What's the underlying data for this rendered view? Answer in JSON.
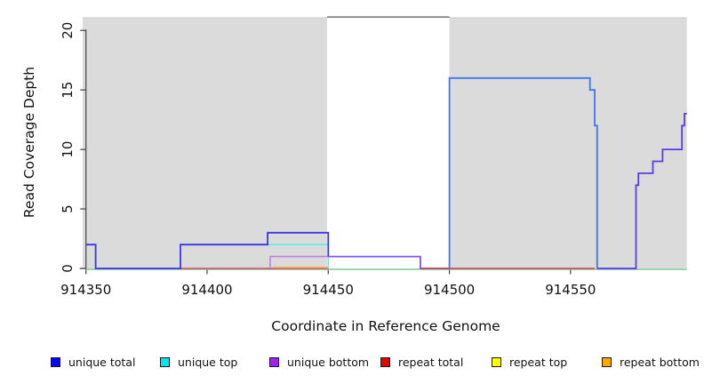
{
  "chart_data": {
    "type": "line",
    "subtype": "step",
    "title": "",
    "xlabel": "Coordinate in Reference Genome",
    "ylabel": "Read Coverage Depth",
    "xlim": [
      914350,
      914598
    ],
    "ylim": [
      0,
      21.1
    ],
    "xticks": [
      914350,
      914400,
      914450,
      914500,
      914550
    ],
    "yticks": [
      0,
      5,
      10,
      15,
      20
    ],
    "grid": false,
    "background_color": "#ffffff",
    "shaded_regions": {
      "color": "#dbdbdb",
      "top_edge_color": "#c9c9c9",
      "ranges": [
        [
          914348.6,
          914449.5
        ],
        [
          914500,
          914598
        ]
      ]
    },
    "gap_top_border": {
      "range": [
        914449.5,
        914500
      ],
      "y": 21.1,
      "color": "#787878"
    },
    "axis_color": "#444444",
    "series": [
      {
        "name": "baseline-zero-line",
        "color": "#7cc98f",
        "width": 1.4,
        "dy": 1.0,
        "points": [
          [
            914350,
            0
          ],
          [
            914598,
            0
          ]
        ]
      },
      {
        "name": "repeat-total-left",
        "color": "#d84a6a",
        "width": 1.4,
        "dy": 0,
        "points": [
          [
            914389,
            0
          ],
          [
            914450,
            0
          ]
        ]
      },
      {
        "name": "repeat-bottom",
        "color": "#ffa040",
        "width": 1.6,
        "dy": -1.0,
        "points": [
          [
            914427,
            0
          ],
          [
            914450,
            0
          ]
        ]
      },
      {
        "name": "unique-top",
        "color": "#5fe8ec",
        "width": 1.6,
        "dy": 0,
        "points": [
          [
            914425,
            2
          ],
          [
            914450,
            2
          ],
          [
            914450,
            0
          ]
        ]
      },
      {
        "name": "unique-bottom",
        "color": "#c080e8",
        "width": 1.6,
        "dy": 0,
        "points": [
          [
            914426,
            0
          ],
          [
            914426,
            1
          ],
          [
            914450,
            1
          ]
        ]
      },
      {
        "name": "unique-total-left",
        "color": "#3a36e4",
        "width": 1.8,
        "dy": 0,
        "points": [
          [
            914350,
            2
          ],
          [
            914354,
            2
          ],
          [
            914354,
            0
          ],
          [
            914389,
            0
          ],
          [
            914389,
            2
          ],
          [
            914425,
            2
          ],
          [
            914425,
            3
          ],
          [
            914450,
            3
          ],
          [
            914450,
            1
          ]
        ]
      },
      {
        "name": "unique-mid",
        "color": "#7c55f8",
        "width": 1.8,
        "dy": 0,
        "points": [
          [
            914450,
            1
          ],
          [
            914488,
            1
          ],
          [
            914488,
            0
          ],
          [
            914500,
            0
          ]
        ]
      },
      {
        "name": "repeat-total-right",
        "color": "#d04055",
        "width": 1.4,
        "dy": 0,
        "points": [
          [
            914488,
            0
          ],
          [
            914560,
            0
          ]
        ]
      },
      {
        "name": "unique-total-peak",
        "color": "#3a79f2",
        "width": 1.8,
        "dy": 0,
        "points": [
          [
            914500,
            0
          ],
          [
            914500,
            16
          ],
          [
            914558,
            16
          ],
          [
            914558,
            15
          ],
          [
            914560,
            15
          ],
          [
            914560,
            12
          ],
          [
            914561,
            12
          ],
          [
            914561,
            0
          ]
        ]
      },
      {
        "name": "unique-right-stairs",
        "color": "#5b3bea",
        "width": 1.8,
        "dy": 0,
        "points": [
          [
            914561,
            0
          ],
          [
            914577,
            0
          ],
          [
            914577,
            7
          ],
          [
            914578,
            7
          ],
          [
            914578,
            8
          ],
          [
            914584,
            8
          ],
          [
            914584,
            9
          ],
          [
            914588,
            9
          ],
          [
            914588,
            10
          ],
          [
            914596,
            10
          ],
          [
            914596,
            12
          ],
          [
            914597,
            12
          ],
          [
            914597,
            13
          ],
          [
            914598,
            13
          ]
        ]
      }
    ],
    "legend": {
      "position": "bottom",
      "items": [
        {
          "label": "unique total",
          "color": "#0505f0"
        },
        {
          "label": "unique top",
          "color": "#00e6f0"
        },
        {
          "label": "unique bottom",
          "color": "#a020f0"
        },
        {
          "label": "repeat total",
          "color": "#e80000"
        },
        {
          "label": "repeat top",
          "color": "#ffff00"
        },
        {
          "label": "repeat bottom",
          "color": "#ffa500"
        }
      ]
    }
  }
}
